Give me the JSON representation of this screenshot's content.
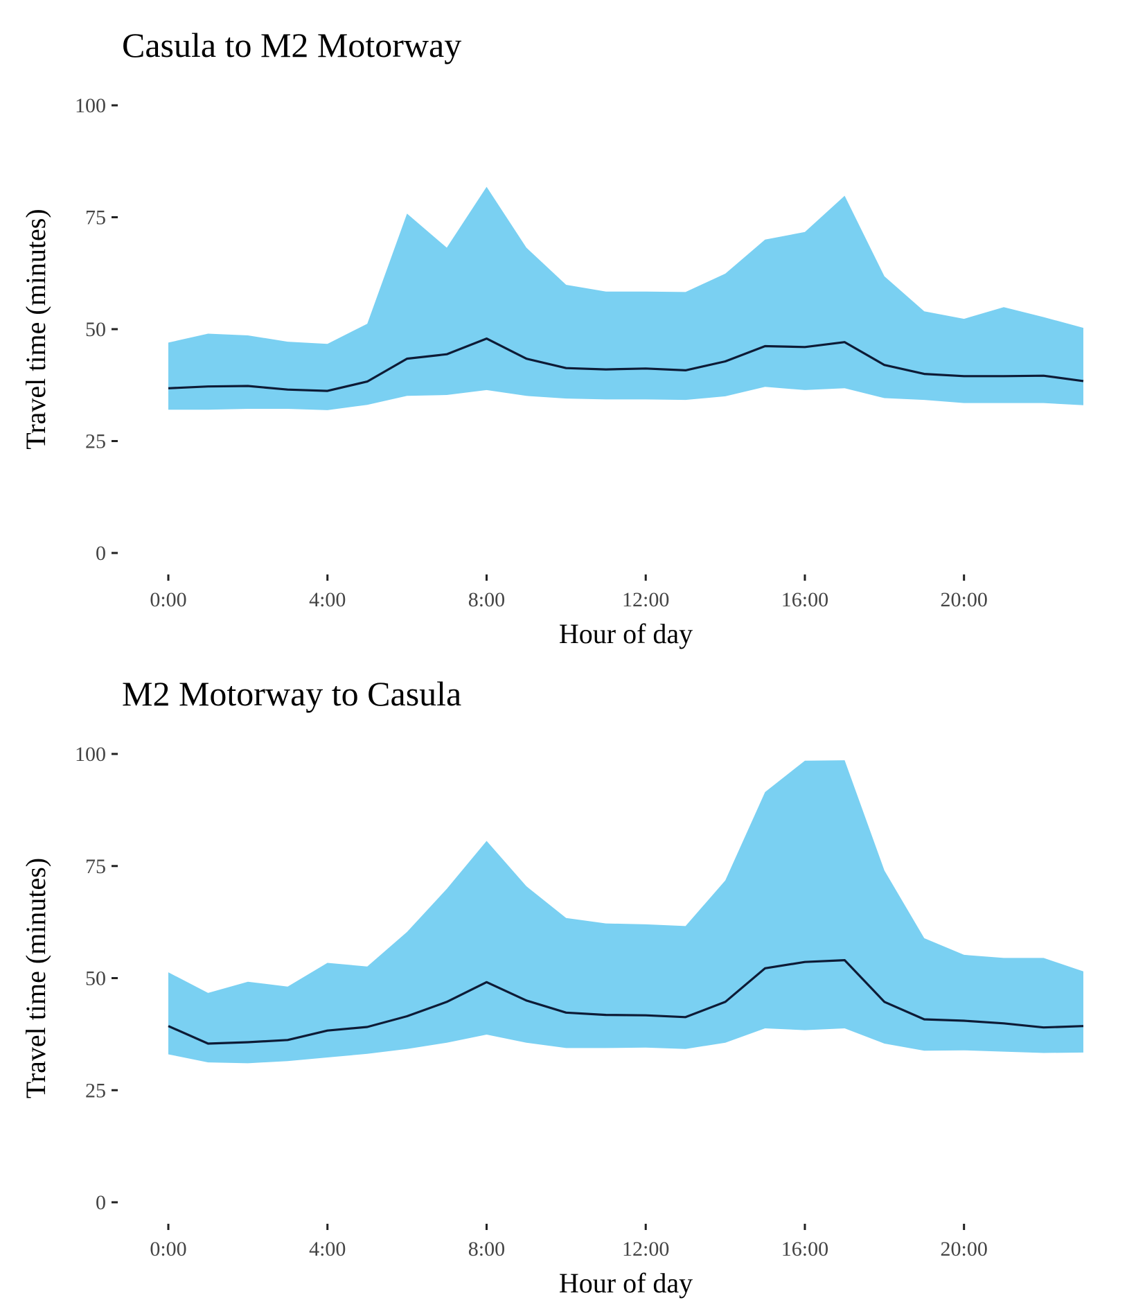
{
  "colors": {
    "band": "#7ad0f2",
    "line": "#0d1b36",
    "tick_mark": "#222222"
  },
  "chart_data": [
    {
      "type": "area",
      "title": "Casula to M2 Motorway",
      "xlabel": "Hour of day",
      "ylabel": "Travel time (minutes)",
      "ylim": [
        0,
        100
      ],
      "xlim": [
        0,
        23
      ],
      "yticks": [
        "0",
        "25",
        "50",
        "75",
        "100"
      ],
      "xticks": [
        "0:00",
        "4:00",
        "8:00",
        "12:00",
        "16:00",
        "20:00"
      ],
      "grid": false,
      "legend": "none",
      "x": [
        0,
        1,
        2,
        3,
        4,
        5,
        6,
        7,
        8,
        9,
        10,
        11,
        12,
        13,
        14,
        15,
        16,
        17,
        18,
        19,
        20,
        21,
        22,
        23
      ],
      "series": [
        {
          "role": "lower",
          "values": [
            32,
            32,
            32.2,
            32.2,
            31.9,
            33.1,
            35.1,
            35.3,
            36.4,
            35.1,
            34.5,
            34.3,
            34.3,
            34.2,
            35,
            37.1,
            36.4,
            36.8,
            34.6,
            34.2,
            33.5,
            33.5,
            33.5,
            33
          ]
        },
        {
          "role": "upper",
          "values": [
            47,
            49,
            48.6,
            47.2,
            46.7,
            51.2,
            75.8,
            68.2,
            81.8,
            68.2,
            59.9,
            58.4,
            58.4,
            58.3,
            62.4,
            70,
            71.7,
            79.8,
            61.8,
            54,
            52.3,
            54.9,
            52.7,
            50.3
          ]
        },
        {
          "role": "median",
          "values": [
            36.8,
            37.2,
            37.3,
            36.5,
            36.2,
            38.3,
            43.4,
            44.4,
            47.9,
            43.4,
            41.3,
            41,
            41.2,
            40.8,
            42.8,
            46.2,
            46,
            47.1,
            42,
            40,
            39.5,
            39.5,
            39.6,
            38.4
          ]
        }
      ]
    },
    {
      "type": "area",
      "title": "M2 Motorway to Casula",
      "xlabel": "Hour of day",
      "ylabel": "Travel time (minutes)",
      "ylim": [
        0,
        100
      ],
      "xlim": [
        0,
        23
      ],
      "yticks": [
        "0",
        "25",
        "50",
        "75",
        "100"
      ],
      "xticks": [
        "0:00",
        "4:00",
        "8:00",
        "12:00",
        "16:00",
        "20:00"
      ],
      "grid": false,
      "legend": "none",
      "x": [
        0,
        1,
        2,
        3,
        4,
        5,
        6,
        7,
        8,
        9,
        10,
        11,
        12,
        13,
        14,
        15,
        16,
        17,
        18,
        19,
        20,
        21,
        22,
        23
      ],
      "series": [
        {
          "role": "lower",
          "values": [
            33,
            31.2,
            31,
            31.5,
            32.3,
            33.1,
            34.2,
            35.6,
            37.4,
            35.6,
            34.4,
            34.4,
            34.5,
            34.2,
            35.6,
            38.8,
            38.4,
            38.8,
            35.4,
            33.8,
            33.9,
            33.6,
            33.3,
            33.4
          ]
        },
        {
          "role": "upper",
          "values": [
            51.3,
            46.7,
            49.2,
            48.1,
            53.4,
            52.6,
            60.3,
            69.9,
            80.6,
            70.5,
            63.4,
            62.2,
            62,
            61.6,
            71.8,
            91.5,
            98.5,
            98.6,
            74,
            58.9,
            55.2,
            54.5,
            54.5,
            51.5
          ]
        },
        {
          "role": "median",
          "values": [
            39.3,
            35.4,
            35.7,
            36.2,
            38.3,
            39.1,
            41.5,
            44.7,
            49.1,
            45,
            42.3,
            41.8,
            41.7,
            41.3,
            44.7,
            52.2,
            53.6,
            54,
            44.7,
            40.8,
            40.5,
            39.9,
            39,
            39.3
          ]
        }
      ]
    }
  ]
}
